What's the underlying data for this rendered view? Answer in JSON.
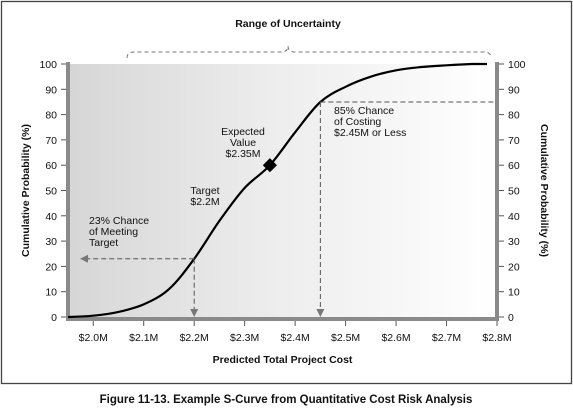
{
  "chart_data": {
    "type": "line",
    "title": "Range of Uncertainty",
    "xlabel": "Predicted Total Project Cost",
    "ylabel_left": "Cumulative Probability (%)",
    "ylabel_right": "Cumulative Probability (%)",
    "xlim": [
      1.95,
      2.8
    ],
    "ylim": [
      0,
      100
    ],
    "x_ticks": [
      2.0,
      2.1,
      2.2,
      2.3,
      2.4,
      2.5,
      2.6,
      2.7,
      2.8
    ],
    "x_tick_labels": [
      "$2.0M",
      "$2.1M",
      "$2.2M",
      "$2.3M",
      "$2.4M",
      "$2.5M",
      "$2.6M",
      "$2.7M",
      "$2.8M"
    ],
    "y_ticks": [
      0,
      10,
      20,
      30,
      40,
      50,
      60,
      70,
      80,
      90,
      100
    ],
    "y_tick_labels": [
      "0",
      "10",
      "20",
      "30",
      "40",
      "50",
      "60",
      "70",
      "80",
      "90",
      "100"
    ],
    "grid": false,
    "series": [
      {
        "x": [
          1.95,
          2.0,
          2.05,
          2.1,
          2.15,
          2.2,
          2.25,
          2.3,
          2.35,
          2.4,
          2.45,
          2.5,
          2.55,
          2.6,
          2.65,
          2.7,
          2.75
        ],
        "y": [
          0,
          0.5,
          2,
          5,
          11,
          23,
          38,
          51,
          60,
          73,
          85,
          91,
          95,
          97.5,
          98.8,
          99.5,
          100
        ]
      }
    ],
    "annotations": {
      "expected_value": {
        "x": 2.35,
        "y": 60,
        "lines": [
          "Expected",
          "Value",
          "$2.35M"
        ]
      },
      "target": {
        "x": 2.2,
        "y": 23,
        "lines": [
          "Target",
          "$2.2M"
        ]
      },
      "chance_meeting": {
        "lines": [
          "23% Chance",
          "of Meeting",
          "Target"
        ]
      },
      "chance_costing": {
        "x": 2.45,
        "y": 85,
        "lines": [
          "85% Chance",
          "of Costing",
          "$2.45M or Less"
        ]
      }
    }
  },
  "caption": "Figure 11-13. Example S-Curve from Quantitative Cost Risk Analysis"
}
